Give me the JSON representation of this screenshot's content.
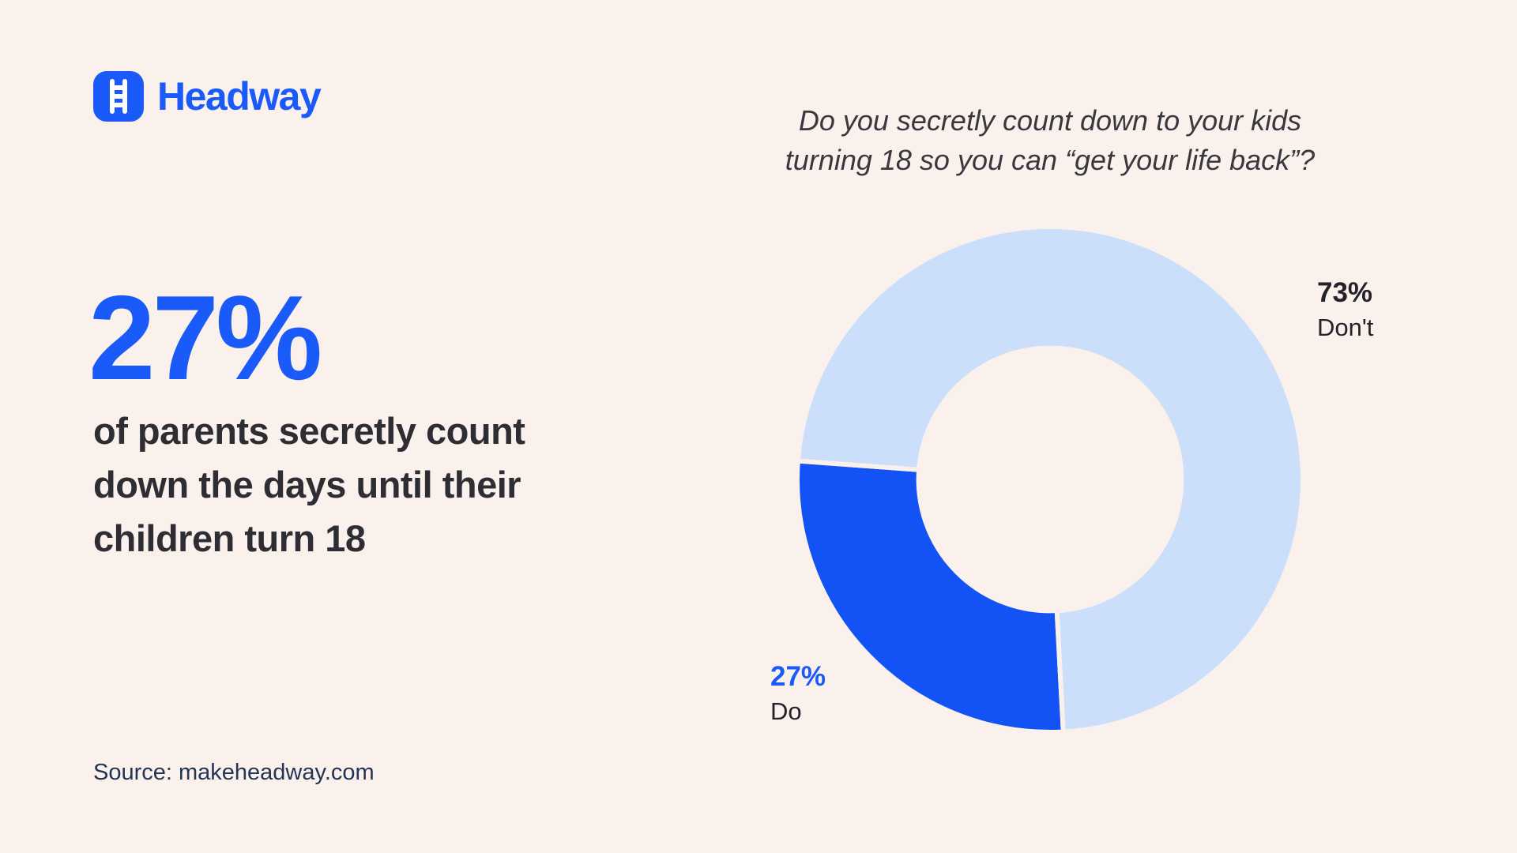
{
  "page": {
    "background": "#FBF1EC"
  },
  "colors": {
    "bg": "#FBF1EC",
    "accent": "#1A5AF8",
    "ink": "#2E2D33",
    "navy": "#233454",
    "label": "#232228"
  },
  "brand": {
    "name": "Headway"
  },
  "stat": {
    "value": "27%",
    "description": "of parents secretly count down the days until their children turn 18"
  },
  "source": {
    "label": "Source: makeheadway.com"
  },
  "chart_data": {
    "type": "pie",
    "subtype": "donut",
    "title": "Do you secretly count down to your kids turning 18 so you can “get your life back”?",
    "categories": [
      "Do",
      "Don't"
    ],
    "values": [
      27,
      73
    ],
    "slices": [
      {
        "label": "Do",
        "value": 27,
        "pct_label": "27%",
        "color": "#1353F5"
      },
      {
        "label": "Don't",
        "value": 73,
        "pct_label": "73%",
        "color": "#CBDFFB"
      }
    ],
    "start_angle_deg": 177,
    "inner_radius_ratio": 0.52,
    "legend_position": "outside-callouts"
  }
}
